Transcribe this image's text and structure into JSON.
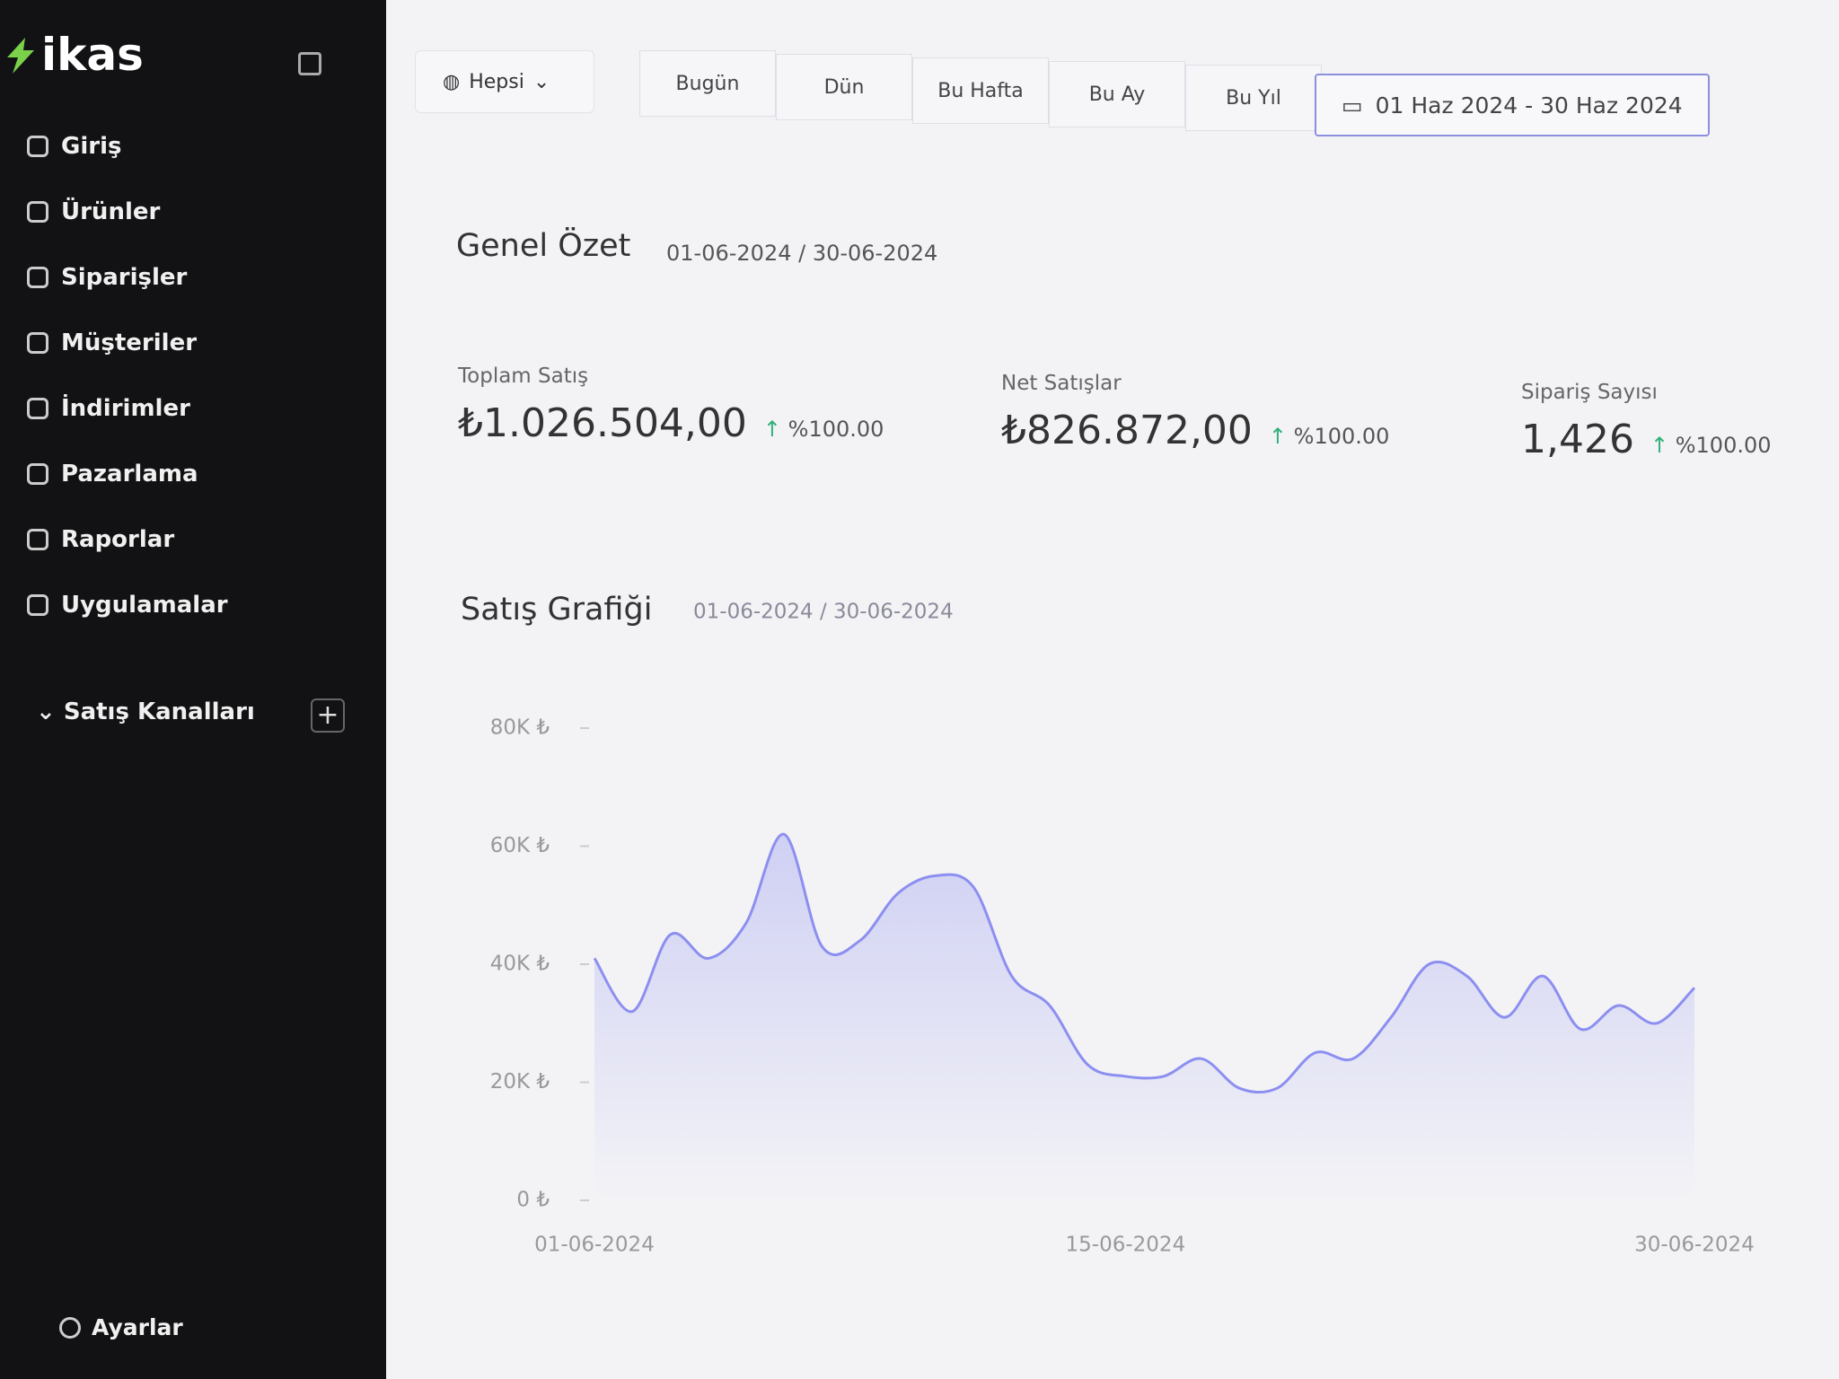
{
  "sidebar": {
    "logo": "ikas",
    "nav": [
      "Giriş",
      "Ürünler",
      "Siparişler",
      "Müşteriler",
      "İndirimler",
      "Pazarlama",
      "Raporlar",
      "Uygulamalar"
    ],
    "section": "Satış Kanalları",
    "settings": "Ayarlar"
  },
  "toolbar": {
    "scope": "Hepsi",
    "tabs": [
      "Bugün",
      "Dün",
      "Bu Hafta",
      "Bu Ay",
      "Bu Yıl"
    ],
    "date_range": "01 Haz 2024 - 30 Haz 2024"
  },
  "summary": {
    "title": "Genel Özet",
    "date": "01-06-2024 / 30-06-2024",
    "cards": [
      {
        "label": "Toplam Satış",
        "value": "₺1.026.504,00",
        "change": "%100.00"
      },
      {
        "label": "Net Satışlar",
        "value": "₺826.872,00",
        "change": "%100.00"
      },
      {
        "label": "Sipariş Sayısı",
        "value": "1,426",
        "change": "%100.00"
      }
    ]
  },
  "chart_data": {
    "type": "line",
    "title": "Satış Grafiği",
    "subtitle": "01-06-2024 / 30-06-2024",
    "categories": [
      "01-06-2024",
      null,
      null,
      null,
      null,
      null,
      null,
      null,
      null,
      null,
      null,
      null,
      null,
      null,
      "15-06-2024",
      null,
      null,
      null,
      null,
      null,
      null,
      null,
      null,
      null,
      null,
      null,
      null,
      null,
      null,
      "30-06-2024"
    ],
    "series": [
      {
        "name": "Satış",
        "color": "#8c8ff0",
        "values": [
          41000,
          32000,
          45000,
          41000,
          47000,
          62000,
          43000,
          44000,
          52000,
          55000,
          53000,
          38000,
          33000,
          23000,
          21000,
          21000,
          24000,
          19000,
          19000,
          25000,
          24000,
          31000,
          40000,
          38000,
          31000,
          38000,
          29000,
          33000,
          30000,
          36000
        ]
      }
    ],
    "ylim": [
      0,
      80000
    ],
    "yticks": [
      {
        "value": 0,
        "label": "0 ₺"
      },
      {
        "value": 20000,
        "label": "20K ₺"
      },
      {
        "value": 40000,
        "label": "40K ₺"
      },
      {
        "value": 60000,
        "label": "60K ₺"
      },
      {
        "value": 80000,
        "label": "80K ₺"
      }
    ],
    "grid": false
  }
}
